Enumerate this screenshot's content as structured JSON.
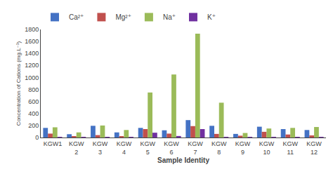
{
  "chart_data": {
    "type": "bar",
    "xlabel": "Sample Identity",
    "ylabel": "Concentration of Cations (mg.L⁻¹)",
    "categories": [
      "KGW1",
      "KGW\n2",
      "KGW\n3",
      "KGW\n4",
      "KGW\n5",
      "KGW\n6",
      "KGW\n7",
      "KGW\n8",
      "KGW\n9",
      "KGW\n10",
      "KGW\n11",
      "KGW\n12"
    ],
    "series": [
      {
        "name": "Ca²⁺",
        "color": "#4472C4",
        "values": [
          160,
          55,
          195,
          85,
          160,
          120,
          290,
          195,
          60,
          180,
          140,
          125
        ]
      },
      {
        "name": "Mg²⁺",
        "color": "#C0504D",
        "values": [
          65,
          20,
          40,
          20,
          140,
          65,
          190,
          60,
          30,
          95,
          50,
          35
        ]
      },
      {
        "name": "Na⁺",
        "color": "#9BBB59",
        "values": [
          170,
          85,
          200,
          125,
          750,
          1050,
          1730,
          580,
          75,
          150,
          160,
          175
        ]
      },
      {
        "name": "K⁺",
        "color": "#7030A0",
        "values": [
          10,
          5,
          10,
          5,
          80,
          25,
          140,
          10,
          5,
          10,
          10,
          5
        ]
      }
    ],
    "ylim": [
      0,
      1800
    ],
    "yticks": [
      0,
      200,
      400,
      600,
      800,
      1000,
      1200,
      1400,
      1600,
      1800
    ],
    "grid": false,
    "legend": "upper left"
  }
}
